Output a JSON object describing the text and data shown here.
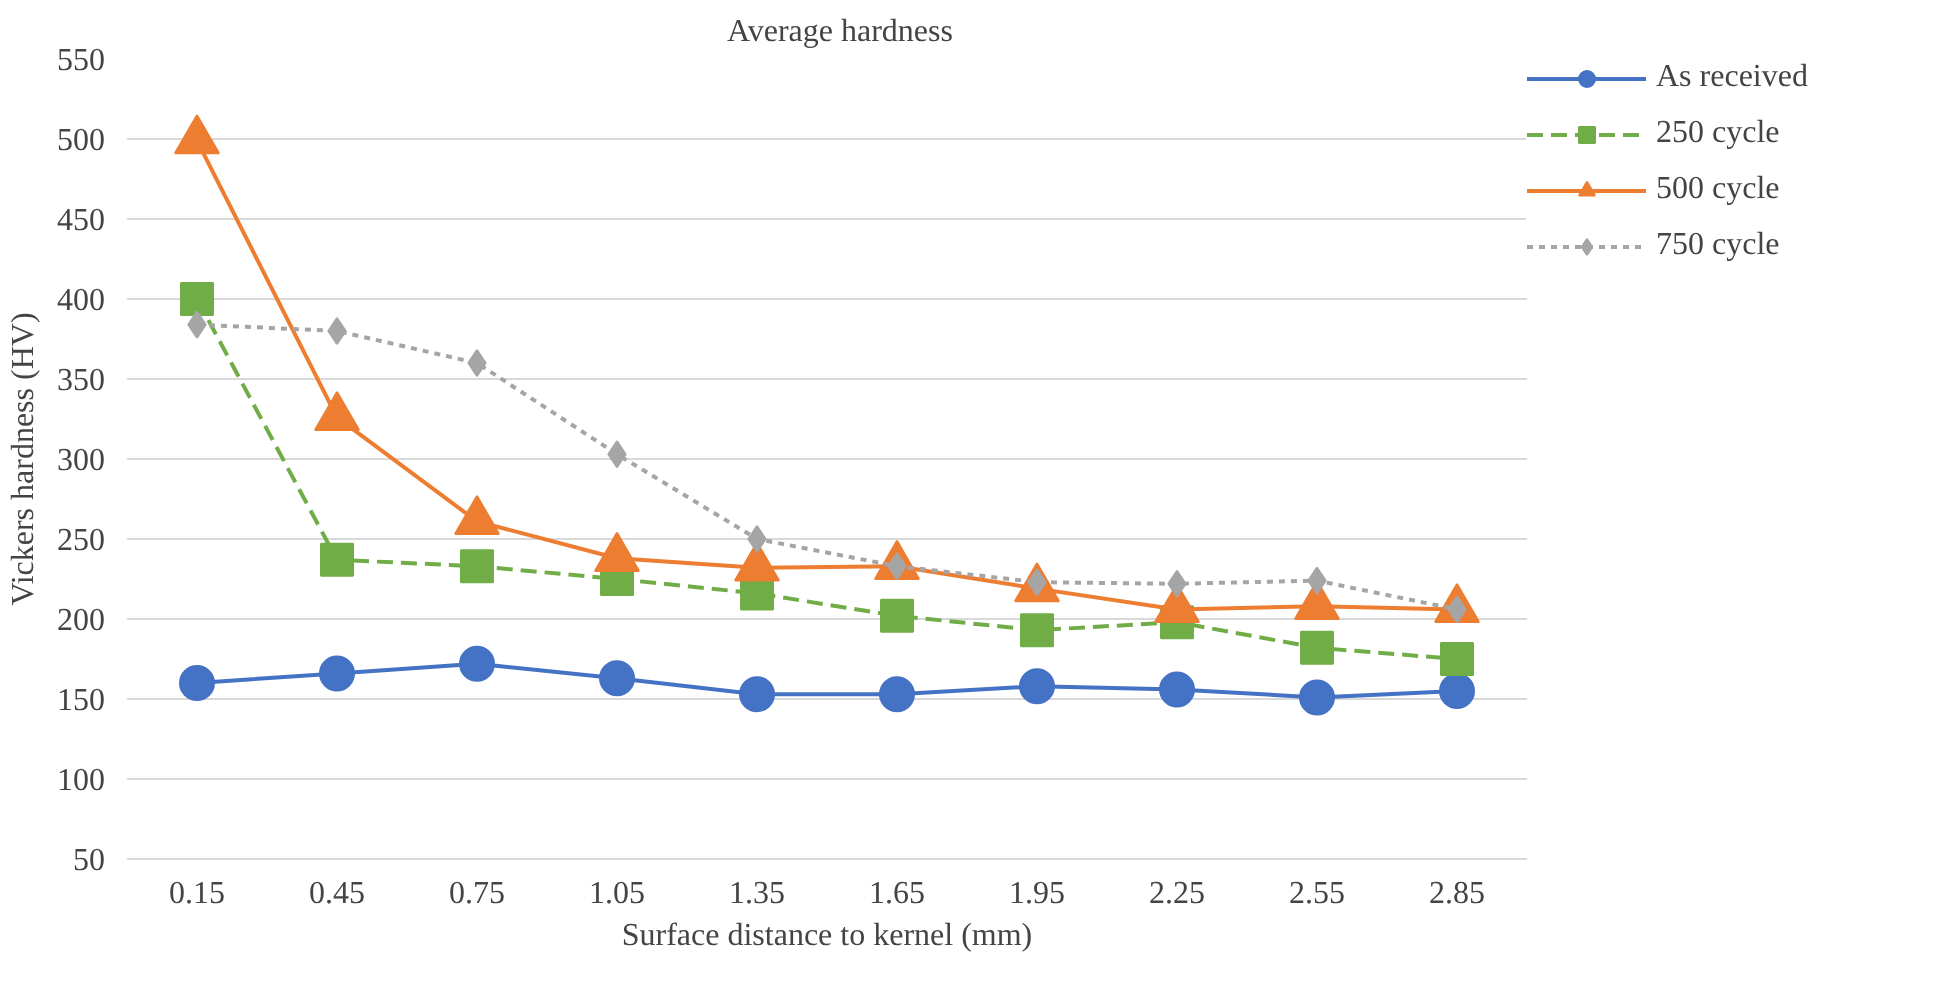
{
  "chart_data": {
    "type": "line",
    "title": "Average hardness",
    "xlabel": "Surface distance to kernel (mm)",
    "ylabel": "Vickers hardness (HV)",
    "categories": [
      "0.15",
      "0.45",
      "0.75",
      "1.05",
      "1.35",
      "1.65",
      "1.95",
      "2.25",
      "2.55",
      "2.85"
    ],
    "ylim": [
      50,
      550
    ],
    "yticks": [
      50,
      100,
      150,
      200,
      250,
      300,
      350,
      400,
      450,
      500,
      550
    ],
    "grid": "y",
    "legend": "top right",
    "series": [
      {
        "name": "As received",
        "color": "#4472c4",
        "marker": "circle",
        "line_style": "solid",
        "values": [
          160,
          166,
          172,
          163,
          153,
          153,
          158,
          156,
          151,
          155
        ]
      },
      {
        "name": "250 cycle",
        "color": "#70ad47",
        "marker": "square",
        "line_style": "dashed",
        "values": [
          400,
          237,
          233,
          225,
          216,
          202,
          193,
          198,
          182,
          175
        ]
      },
      {
        "name": "500 cycle",
        "color": "#ed7d31",
        "marker": "triangle",
        "line_style": "solid",
        "values": [
          499,
          326,
          261,
          238,
          232,
          233,
          219,
          206,
          208,
          206
        ]
      },
      {
        "name": "750 cycle",
        "color": "#a5a5a5",
        "marker": "diamond",
        "line_style": "dotted",
        "values": [
          384,
          380,
          360,
          303,
          250,
          233,
          223,
          222,
          224,
          206
        ]
      }
    ]
  }
}
